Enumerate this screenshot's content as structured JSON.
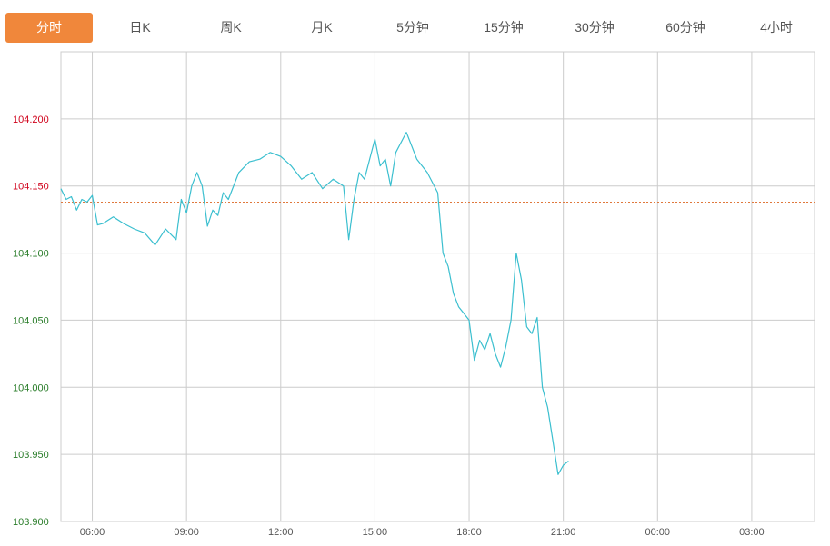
{
  "tabs": [
    {
      "label": "分时",
      "active": true
    },
    {
      "label": "日K",
      "active": false
    },
    {
      "label": "周K",
      "active": false
    },
    {
      "label": "月K",
      "active": false
    },
    {
      "label": "5分钟",
      "active": false
    },
    {
      "label": "15分钟",
      "active": false
    },
    {
      "label": "30分钟",
      "active": false
    },
    {
      "label": "60分钟",
      "active": false
    },
    {
      "label": "4小时",
      "active": false
    }
  ],
  "colors": {
    "accent": "#f0873b",
    "line": "#3bbfcf",
    "reference_line": "#e0783c",
    "above_reference_label": "#d0021b",
    "below_reference_label": "#2a7d2a",
    "grid": "#cccccc"
  },
  "chart_data": {
    "type": "line",
    "grid": true,
    "y_ticks": [
      "103.900",
      "103.950",
      "104.000",
      "104.050",
      "104.100",
      "104.150",
      "104.200"
    ],
    "ylim": [
      103.9,
      104.25
    ],
    "x_ticks": [
      "06:00",
      "09:00",
      "12:00",
      "15:00",
      "18:00",
      "21:00",
      "00:00",
      "03:00"
    ],
    "x_range": [
      "05:00",
      "05:00 (+1 day)"
    ],
    "reference_value": 104.138,
    "series": [
      {
        "x": [
          "05:00",
          "05:10",
          "05:20",
          "05:30",
          "05:40",
          "05:50",
          "06:00",
          "06:10",
          "06:20",
          "06:40",
          "07:00",
          "07:20",
          "07:40",
          "08:00",
          "08:10",
          "08:20",
          "08:40",
          "08:50",
          "09:00",
          "09:10",
          "09:20",
          "09:30",
          "09:40",
          "09:50",
          "10:00",
          "10:10",
          "10:20",
          "10:40",
          "11:00",
          "11:20",
          "11:40",
          "12:00",
          "12:20",
          "12:40",
          "13:00",
          "13:20",
          "13:40",
          "14:00",
          "14:10",
          "14:20",
          "14:30",
          "14:40",
          "15:00",
          "15:10",
          "15:20",
          "15:30",
          "15:40",
          "16:00",
          "16:20",
          "16:40",
          "17:00",
          "17:10",
          "17:20",
          "17:30",
          "17:40",
          "17:50",
          "18:00",
          "18:10",
          "18:20",
          "18:30",
          "18:40",
          "18:50",
          "19:00",
          "19:10",
          "19:20",
          "19:30",
          "19:40",
          "19:50",
          "20:00",
          "20:10",
          "20:20",
          "20:30",
          "20:40",
          "20:50",
          "21:00",
          "21:10"
        ],
        "y": [
          104.148,
          104.14,
          104.142,
          104.132,
          104.14,
          104.138,
          104.143,
          104.121,
          104.122,
          104.127,
          104.122,
          104.118,
          104.115,
          104.106,
          104.112,
          104.118,
          104.11,
          104.14,
          104.13,
          104.15,
          104.16,
          104.15,
          104.12,
          104.132,
          104.128,
          104.145,
          104.14,
          104.16,
          104.168,
          104.17,
          104.175,
          104.172,
          104.165,
          104.155,
          104.16,
          104.148,
          104.155,
          104.15,
          104.11,
          104.14,
          104.16,
          104.155,
          104.185,
          104.165,
          104.17,
          104.15,
          104.175,
          104.19,
          104.17,
          104.16,
          104.145,
          104.1,
          104.09,
          104.07,
          104.06,
          104.055,
          104.05,
          104.02,
          104.035,
          104.028,
          104.04,
          104.025,
          104.015,
          104.03,
          104.05,
          104.1,
          104.08,
          104.045,
          104.04,
          104.052,
          104.0,
          103.985,
          103.96,
          103.935,
          103.942,
          103.945
        ]
      }
    ]
  }
}
